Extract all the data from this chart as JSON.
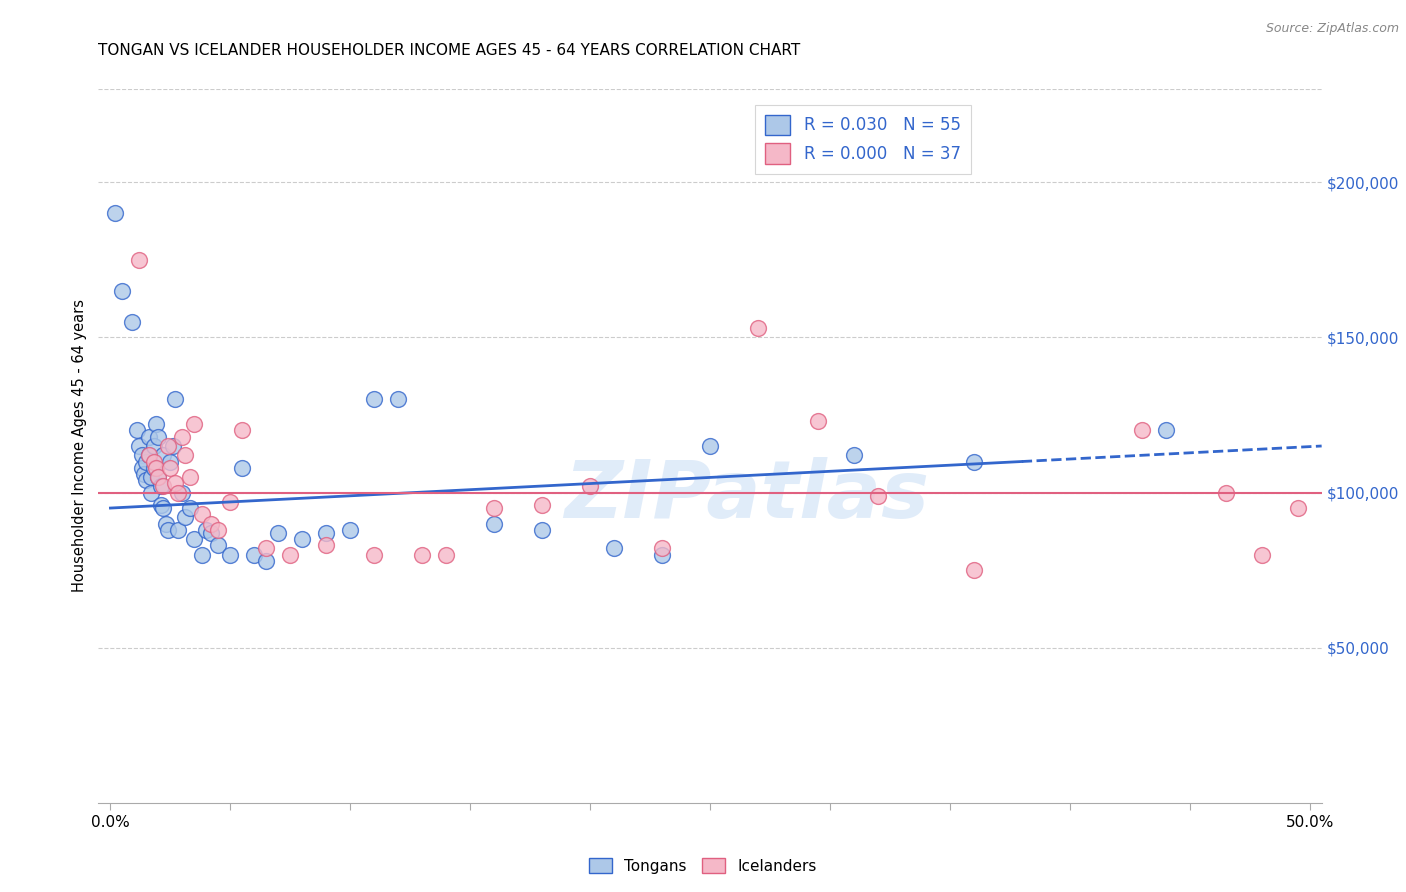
{
  "title": "TONGAN VS ICELANDER HOUSEHOLDER INCOME AGES 45 - 64 YEARS CORRELATION CHART",
  "source": "Source: ZipAtlas.com",
  "ylabel": "Householder Income Ages 45 - 64 years",
  "ytick_labels": [
    "$50,000",
    "$100,000",
    "$150,000",
    "$200,000"
  ],
  "ytick_vals": [
    50000,
    100000,
    150000,
    200000
  ],
  "ylim": [
    0,
    230000
  ],
  "xlim": [
    -0.005,
    0.505
  ],
  "legend_tongan_R": "0.030",
  "legend_tongan_N": "55",
  "legend_icelander_R": "0.000",
  "legend_icelander_N": "37",
  "tongan_color": "#adc8e8",
  "icelander_color": "#f5b8c8",
  "trend_tongan_color": "#3366cc",
  "trend_icelander_color": "#e06080",
  "watermark": "ZIPatlas",
  "tongan_x": [
    0.002,
    0.005,
    0.009,
    0.011,
    0.012,
    0.013,
    0.013,
    0.014,
    0.015,
    0.015,
    0.016,
    0.016,
    0.017,
    0.017,
    0.018,
    0.018,
    0.019,
    0.02,
    0.02,
    0.021,
    0.021,
    0.022,
    0.022,
    0.023,
    0.024,
    0.025,
    0.026,
    0.027,
    0.028,
    0.03,
    0.031,
    0.033,
    0.035,
    0.038,
    0.04,
    0.042,
    0.045,
    0.05,
    0.055,
    0.06,
    0.065,
    0.07,
    0.08,
    0.09,
    0.1,
    0.11,
    0.12,
    0.16,
    0.18,
    0.21,
    0.23,
    0.25,
    0.31,
    0.36,
    0.44
  ],
  "tongan_y": [
    190000,
    165000,
    155000,
    120000,
    115000,
    112000,
    108000,
    106000,
    110000,
    104000,
    118000,
    112000,
    105000,
    100000,
    115000,
    108000,
    122000,
    118000,
    105000,
    102000,
    96000,
    112000,
    95000,
    90000,
    88000,
    110000,
    115000,
    130000,
    88000,
    100000,
    92000,
    95000,
    85000,
    80000,
    88000,
    87000,
    83000,
    80000,
    108000,
    80000,
    78000,
    87000,
    85000,
    87000,
    88000,
    130000,
    130000,
    90000,
    88000,
    82000,
    80000,
    115000,
    112000,
    110000,
    120000
  ],
  "icelander_x": [
    0.012,
    0.016,
    0.018,
    0.019,
    0.02,
    0.022,
    0.024,
    0.025,
    0.027,
    0.028,
    0.03,
    0.031,
    0.033,
    0.035,
    0.038,
    0.042,
    0.045,
    0.05,
    0.055,
    0.065,
    0.075,
    0.09,
    0.11,
    0.13,
    0.16,
    0.18,
    0.2,
    0.23,
    0.27,
    0.295,
    0.32,
    0.36,
    0.43,
    0.465,
    0.48,
    0.495,
    0.14
  ],
  "icelander_y": [
    175000,
    112000,
    110000,
    108000,
    105000,
    102000,
    115000,
    108000,
    103000,
    100000,
    118000,
    112000,
    105000,
    122000,
    93000,
    90000,
    88000,
    97000,
    120000,
    82000,
    80000,
    83000,
    80000,
    80000,
    95000,
    96000,
    102000,
    82000,
    153000,
    123000,
    99000,
    75000,
    120000,
    100000,
    80000,
    95000,
    80000
  ],
  "trend_tongan_x0": 0.0,
  "trend_tongan_y0": 95000,
  "trend_tongan_x1": 0.38,
  "trend_tongan_y1": 110000,
  "trend_tongan_dash_x0": 0.38,
  "trend_tongan_dash_y0": 110000,
  "trend_tongan_dash_x1": 0.505,
  "trend_tongan_dash_y1": 115000,
  "trend_icelander_y": 100000
}
